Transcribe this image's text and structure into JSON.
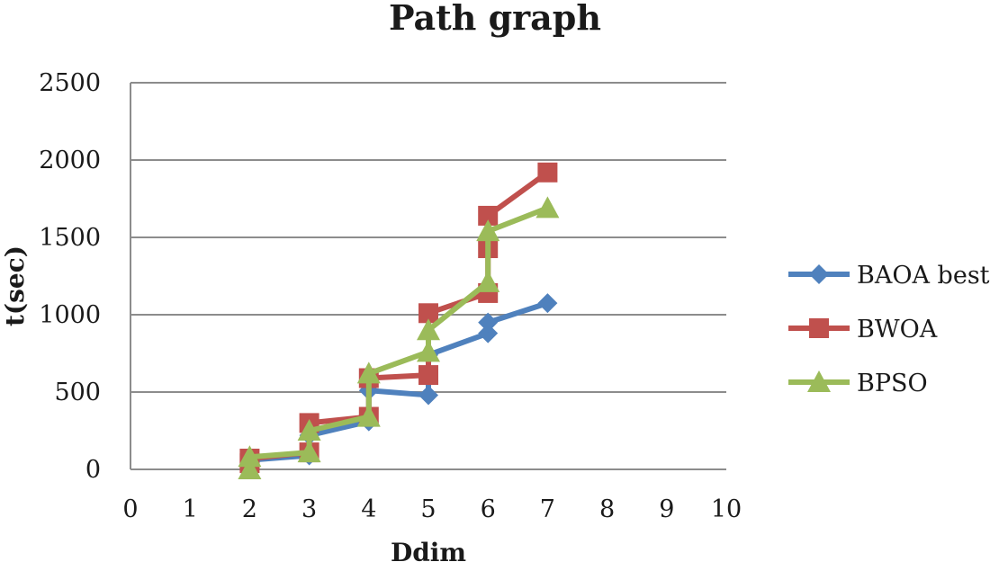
{
  "chart_data": {
    "type": "line",
    "title": "Path graph",
    "xlabel": "Ddim",
    "ylabel": "t(sec)",
    "xlim": [
      0,
      10
    ],
    "ylim": [
      0,
      2500
    ],
    "xticks": [
      "0",
      "1",
      "2",
      "3",
      "4",
      "5",
      "6",
      "7",
      "8",
      "9",
      "10"
    ],
    "yticks": [
      "0",
      "500",
      "1000",
      "1500",
      "2000",
      "2500"
    ],
    "grid": "horizontal",
    "legend": "right",
    "series": [
      {
        "name": "BAOA best",
        "color": "#4F81BD",
        "marker": "diamond",
        "x": [
          2,
          2,
          3,
          3,
          4,
          4,
          5,
          5,
          6,
          6,
          7
        ],
        "y": [
          20,
          60,
          90,
          220,
          310,
          510,
          480,
          740,
          880,
          950,
          1075
        ]
      },
      {
        "name": "BWOA",
        "color": "#C0504D",
        "marker": "square",
        "x": [
          2,
          2,
          3,
          3,
          4,
          4,
          5,
          5,
          6,
          6,
          6,
          7
        ],
        "y": [
          40,
          70,
          110,
          300,
          340,
          590,
          610,
          1010,
          1140,
          1430,
          1640,
          1920
        ]
      },
      {
        "name": "BPSO",
        "color": "#9BBB59",
        "marker": "triangle",
        "x": [
          2,
          2,
          3,
          3,
          4,
          4,
          5,
          5,
          6,
          6,
          7
        ],
        "y": [
          0,
          80,
          110,
          250,
          340,
          620,
          760,
          900,
          1210,
          1540,
          1690
        ]
      }
    ]
  }
}
